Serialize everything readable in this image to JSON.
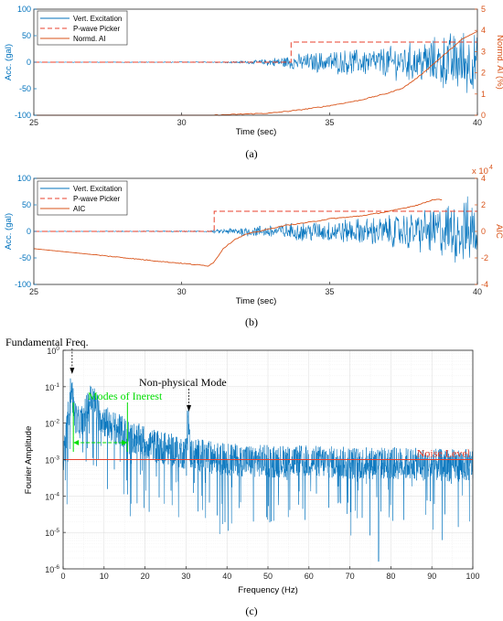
{
  "chart_data": [
    {
      "type": "line",
      "caption": "(a)",
      "xlabel": "Time (sec)",
      "ylabel": "Acc. (gal)",
      "y2label": "Normd. AI (%)",
      "xlim": [
        25,
        40
      ],
      "ylim": [
        -100,
        100
      ],
      "y2lim": [
        0,
        5
      ],
      "xticks": [
        "25",
        "30",
        "35",
        "40"
      ],
      "yticks": [
        "100",
        "50",
        "0",
        "-50",
        "-100"
      ],
      "y2ticks": [
        "5",
        "4",
        "3",
        "2",
        "1",
        "0"
      ],
      "legend_position": "top-left",
      "series": [
        {
          "name": "Vert. Excitation",
          "axis": "left",
          "style": "solid",
          "color": "#0072BD",
          "x": [
            25,
            31.3,
            32.5,
            33.8,
            35,
            36.5,
            37.5,
            38.3,
            39,
            39.6,
            40
          ],
          "amplitude": [
            0.3,
            0.8,
            3,
            12,
            18,
            22,
            28,
            35,
            45,
            55,
            40
          ]
        },
        {
          "name": "P-wave Picker",
          "axis": "left",
          "style": "dashed",
          "color": "#E8412C",
          "x": [
            25,
            33.7,
            33.7,
            40
          ],
          "y": [
            0,
            0,
            38,
            38
          ]
        },
        {
          "name": "Normd. AI",
          "axis": "right",
          "style": "solid",
          "color": "#D95319",
          "x": [
            25,
            31,
            33,
            34,
            35,
            36,
            37,
            37.5,
            38,
            38.5,
            39,
            39.5,
            40
          ],
          "y": [
            0,
            0,
            0.1,
            0.25,
            0.45,
            0.7,
            1.05,
            1.3,
            1.8,
            2.4,
            3.0,
            3.6,
            3.95
          ]
        }
      ]
    },
    {
      "type": "line",
      "caption": "(b)",
      "xlabel": "Time (sec)",
      "ylabel": "Acc. (gal)",
      "y2label": "AIC",
      "y2multiplier": "x 10",
      "y2exponent": "4",
      "xlim": [
        25,
        40
      ],
      "ylim": [
        -100,
        100
      ],
      "y2lim": [
        -4,
        4
      ],
      "xticks": [
        "25",
        "30",
        "35",
        "40"
      ],
      "yticks": [
        "100",
        "50",
        "0",
        "-50",
        "-100"
      ],
      "y2ticks": [
        "4",
        "2",
        "0",
        "-2",
        "-4"
      ],
      "legend_position": "top-left",
      "series": [
        {
          "name": "Vert. Excitation",
          "axis": "left",
          "style": "solid",
          "color": "#0072BD",
          "x": [
            25,
            30.9,
            31.5,
            32.5,
            33.8,
            35,
            36.5,
            37.5,
            38.3,
            39,
            39.6,
            40
          ],
          "amplitude": [
            0.3,
            1,
            5,
            9,
            14,
            18,
            22,
            28,
            35,
            45,
            55,
            40
          ]
        },
        {
          "name": "P-wave Picker",
          "axis": "left",
          "style": "dashed",
          "color": "#E8412C",
          "x": [
            25,
            31.1,
            31.1,
            40
          ],
          "y": [
            0,
            0,
            38,
            38
          ]
        },
        {
          "name": "AIC",
          "axis": "right",
          "style": "solid",
          "color": "#D95319",
          "x": [
            25,
            27,
            29,
            30.9,
            31.1,
            31.4,
            31.8,
            32.2,
            32.8,
            33.5,
            34.5,
            35,
            36,
            37,
            37.5,
            38,
            38.5,
            38.8
          ],
          "y": [
            -1.3,
            -1.75,
            -2.2,
            -2.6,
            -2.3,
            -1.3,
            -0.6,
            -0.2,
            0.1,
            0.45,
            0.75,
            0.95,
            1.15,
            1.5,
            1.75,
            2.0,
            2.4,
            2.4
          ]
        }
      ]
    },
    {
      "type": "line",
      "caption": "(c)",
      "xlabel": "Frequency (Hz)",
      "ylabel": "Fourier Amplitude",
      "xlim": [
        0,
        100
      ],
      "ylim": [
        1e-06,
        1
      ],
      "yscale": "log",
      "xticks": [
        "0",
        "10",
        "20",
        "30",
        "40",
        "50",
        "60",
        "70",
        "80",
        "90",
        "100"
      ],
      "ytick_exponents": [
        "0",
        "-1",
        "-2",
        "-3",
        "-4",
        "-5",
        "-6"
      ],
      "grid": true,
      "series": [
        {
          "name": "",
          "style": "solid",
          "color": "#0072BD",
          "x": [
            0,
            0.8,
            1.5,
            2.0,
            2.3,
            2.7,
            3.5,
            5,
            6,
            7,
            8,
            9,
            10,
            12,
            14,
            17,
            20,
            25,
            30,
            30.5,
            31,
            35,
            40,
            50,
            60,
            70,
            80,
            90,
            100
          ],
          "y": [
            0.001,
            0.005,
            0.03,
            0.12,
            0.05,
            0.02,
            0.01,
            0.012,
            0.03,
            0.05,
            0.03,
            0.015,
            0.012,
            0.008,
            0.006,
            0.004,
            0.003,
            0.002,
            0.0015,
            0.025,
            0.0015,
            0.0012,
            0.001,
            0.0009,
            0.0009,
            0.0008,
            0.0008,
            0.0007,
            0.0007
          ]
        },
        {
          "name": "",
          "style": "solid",
          "color": "#E8412C",
          "x": [
            0,
            100
          ],
          "y": [
            0.001,
            0.001
          ]
        }
      ],
      "annotations": [
        {
          "text": "Fundamental Freq.",
          "color": "#000000"
        },
        {
          "text": "Non-physical Mode",
          "color": "#000000"
        },
        {
          "text": "Modes of Inerest",
          "color": "#00DD00"
        },
        {
          "text": "Noise Level",
          "color": "#E8412C"
        }
      ]
    }
  ]
}
